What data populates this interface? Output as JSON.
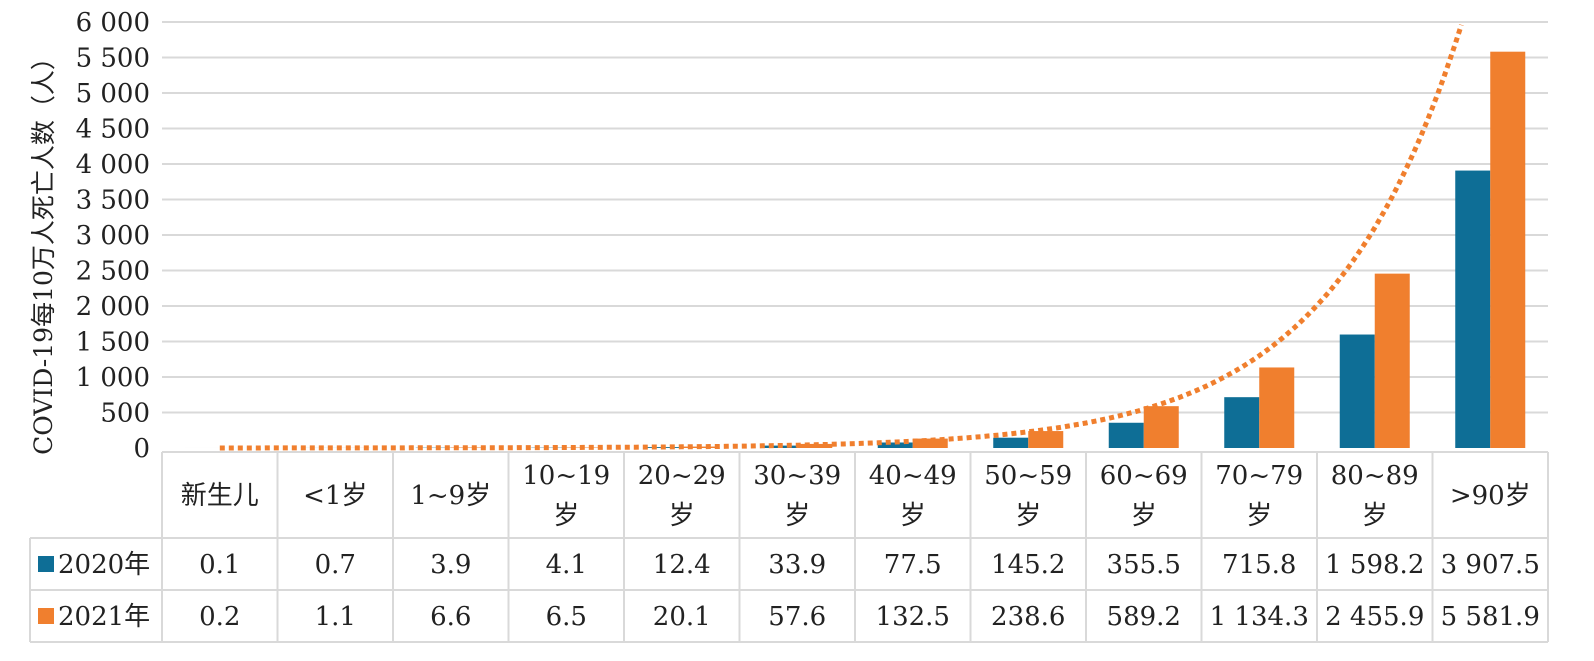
{
  "chart_data": {
    "type": "bar",
    "title": "",
    "xlabel": "",
    "ylabel": "COVID-19每10万人死亡人数（人）",
    "ylim": [
      0,
      6000
    ],
    "yticks": [
      0,
      500,
      1000,
      1500,
      2000,
      2500,
      3000,
      3500,
      4000,
      4500,
      5000,
      5500,
      6000
    ],
    "ytick_labels": [
      "0",
      "500",
      "1 000",
      "1 500",
      "2 000",
      "2 500",
      "3 000",
      "3 500",
      "4 000",
      "4 500",
      "5 000",
      "5 500",
      "6 000"
    ],
    "grid": true,
    "legend": "data-table",
    "categories": [
      "新生儿",
      "<1岁",
      "1~9岁",
      "10~19岁",
      "20~29岁",
      "30~39岁",
      "40~49岁",
      "50~59岁",
      "60~69岁",
      "70~79岁",
      "80~89岁",
      ">90岁"
    ],
    "category_lines": [
      [
        "新生儿"
      ],
      [
        "<1岁"
      ],
      [
        "1~9岁"
      ],
      [
        "10~19",
        "岁"
      ],
      [
        "20~29",
        "岁"
      ],
      [
        "30~39",
        "岁"
      ],
      [
        "40~49",
        "岁"
      ],
      [
        "50~59",
        "岁"
      ],
      [
        "60~69",
        "岁"
      ],
      [
        "70~79",
        "岁"
      ],
      [
        "80~89",
        "岁"
      ],
      [
        ">90岁"
      ]
    ],
    "series": [
      {
        "name": "2020年",
        "color": "#0E6E96",
        "values": [
          0.1,
          0.7,
          3.9,
          4.1,
          12.4,
          33.9,
          77.5,
          145.2,
          355.5,
          715.8,
          1598.2,
          3907.5
        ],
        "labels": [
          "0.1",
          "0.7",
          "3.9",
          "4.1",
          "12.4",
          "33.9",
          "77.5",
          "145.2",
          "355.5",
          "715.8",
          "1 598.2",
          "3 907.5"
        ]
      },
      {
        "name": "2021年",
        "color": "#F07F2E",
        "values": [
          0.2,
          1.1,
          6.6,
          6.5,
          20.1,
          57.6,
          132.5,
          238.6,
          589.2,
          1134.3,
          2455.9,
          5581.9
        ],
        "labels": [
          "0.2",
          "1.1",
          "6.6",
          "6.5",
          "20.1",
          "57.6",
          "132.5",
          "238.6",
          "589.2",
          "1 134.3",
          "2 455.9",
          "5 581.9"
        ]
      }
    ],
    "trendline": {
      "type": "exponential",
      "series": "2021年",
      "style": "dotted",
      "color": "#F07F2E"
    }
  }
}
